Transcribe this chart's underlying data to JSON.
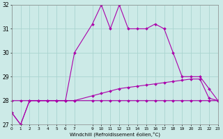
{
  "xlabel": "Windchill (Refroidissement éolien,°C)",
  "bg_color": "#cceae7",
  "grid_color": "#aad4d0",
  "line_color": "#aa00aa",
  "hours": [
    0,
    1,
    2,
    3,
    4,
    5,
    6,
    7,
    9,
    10,
    11,
    12,
    13,
    14,
    15,
    16,
    17,
    18,
    19,
    20,
    21,
    22,
    23
  ],
  "flat_line": [
    27.5,
    27.0,
    28.0,
    28.0,
    28.0,
    28.0,
    28.0,
    28.0,
    28.0,
    28.0,
    28.0,
    28.0,
    28.0,
    28.0,
    28.0,
    28.0,
    28.0,
    28.0,
    28.0,
    28.0,
    28.0,
    28.0,
    28.0
  ],
  "windchill_line": [
    27.5,
    27.0,
    28.0,
    28.0,
    28.0,
    28.0,
    28.0,
    30.0,
    31.2,
    32.0,
    31.0,
    32.0,
    31.0,
    31.0,
    31.0,
    31.2,
    31.0,
    30.0,
    29.0,
    29.0,
    29.0,
    28.5,
    28.0
  ],
  "slow_rise": [
    28.0,
    28.0,
    28.0,
    28.0,
    28.0,
    28.0,
    28.0,
    28.0,
    28.2,
    28.3,
    28.4,
    28.5,
    28.55,
    28.6,
    28.65,
    28.7,
    28.75,
    28.8,
    28.85,
    28.9,
    28.9,
    28.1,
    28.0
  ],
  "ylim": [
    27,
    32
  ],
  "xlim": [
    0,
    23
  ],
  "xticks": [
    0,
    1,
    2,
    3,
    4,
    5,
    6,
    7,
    9,
    10,
    11,
    12,
    13,
    14,
    15,
    16,
    17,
    18,
    19,
    20,
    21,
    22,
    23
  ],
  "yticks": [
    27,
    28,
    29,
    30,
    31,
    32
  ]
}
